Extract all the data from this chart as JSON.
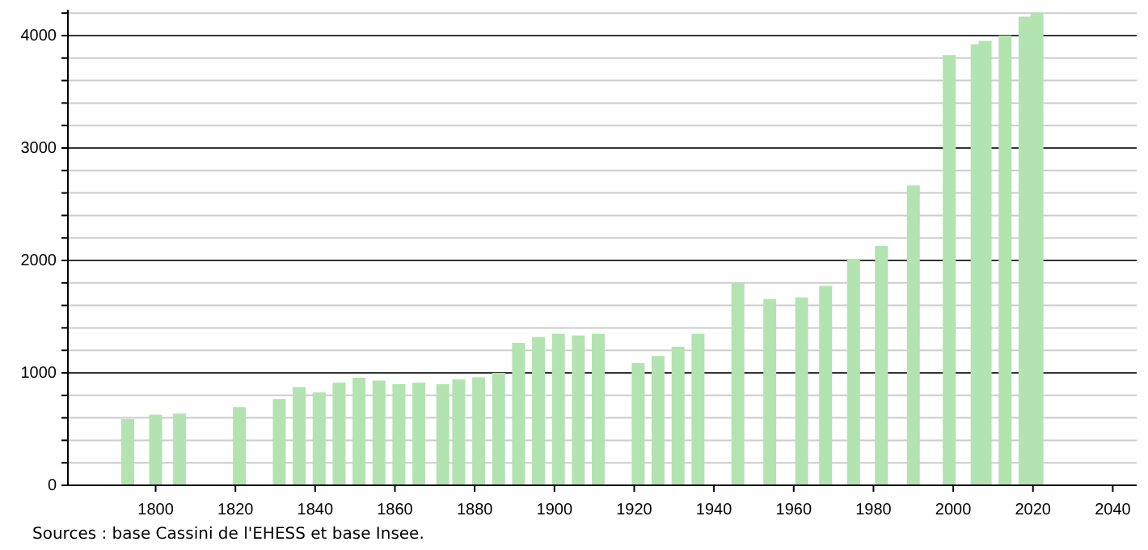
{
  "chart_data": {
    "type": "bar",
    "x": [
      1793,
      1800,
      1806,
      1821,
      1831,
      1836,
      1841,
      1846,
      1851,
      1856,
      1861,
      1866,
      1872,
      1876,
      1881,
      1886,
      1891,
      1896,
      1901,
      1906,
      1911,
      1921,
      1926,
      1931,
      1936,
      1946,
      1954,
      1962,
      1968,
      1975,
      1982,
      1990,
      1999,
      2006,
      2008,
      2013,
      2018,
      2021
    ],
    "values": [
      589,
      628,
      638,
      696,
      768,
      874,
      826,
      913,
      957,
      932,
      899,
      913,
      899,
      942,
      961,
      1000,
      1266,
      1319,
      1348,
      1333,
      1348,
      1087,
      1150,
      1232,
      1348,
      1797,
      1657,
      1671,
      1773,
      2014,
      2130,
      2667,
      3826,
      3923,
      3952,
      4000,
      4169,
      4198
    ],
    "color": "#b3e3b0",
    "xlim": [
      1778,
      2046
    ],
    "xticks": [
      1800,
      1820,
      1840,
      1860,
      1880,
      1900,
      1920,
      1940,
      1960,
      1980,
      2000,
      2020,
      2040
    ],
    "ylim": [
      0,
      4230
    ],
    "yticks": [
      0,
      {
        "value": 200,
        "label": null
      },
      {
        "value": 400,
        "label": null
      },
      {
        "value": 600,
        "label": null
      },
      {
        "value": 800,
        "label": null
      },
      1000,
      {
        "value": 1200,
        "label": null
      },
      {
        "value": 1400,
        "label": null
      },
      {
        "value": 1600,
        "label": null
      },
      {
        "value": 1800,
        "label": null
      },
      2000,
      {
        "value": 2200,
        "label": null
      },
      {
        "value": 2400,
        "label": null
      },
      {
        "value": 2600,
        "label": null
      },
      {
        "value": 2800,
        "label": null
      },
      3000,
      {
        "value": 3200,
        "label": null
      },
      {
        "value": 3400,
        "label": null
      },
      {
        "value": 3600,
        "label": null
      },
      {
        "value": 3800,
        "label": null
      },
      4000,
      {
        "value": 4200,
        "label": null
      }
    ],
    "grid": "y",
    "annotations": [
      "Sources : base Cassini de l'EHESS et base Insee."
    ]
  }
}
